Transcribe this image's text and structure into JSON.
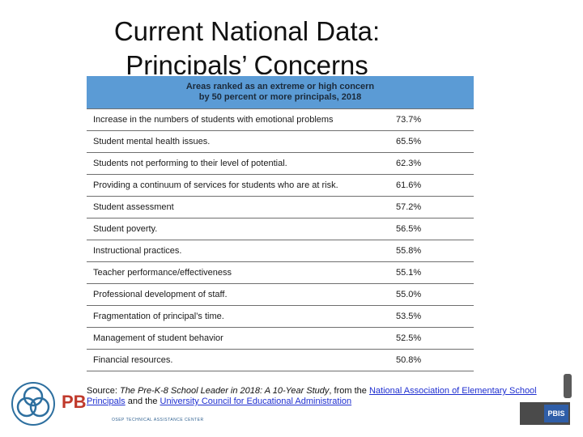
{
  "title": {
    "line1": "Current National Data:",
    "line2": "Principals’ Concerns"
  },
  "table": {
    "header_line1": "Areas ranked as an extreme or high concern",
    "header_line2": "by 50 percent or more principals, 2018",
    "rows": [
      {
        "label": "Increase in the numbers of students with emotional problems",
        "value": "73.7%"
      },
      {
        "label": "Student mental health issues.",
        "value": "65.5%"
      },
      {
        "label": "Students not performing to their level of potential.",
        "value": "62.3%"
      },
      {
        "label": "Providing a continuum of services for students who are at risk.",
        "value": "61.6%"
      },
      {
        "label": "Student assessment",
        "value": "57.2%"
      },
      {
        "label": "Student poverty.",
        "value": "56.5%"
      },
      {
        "label": "Instructional practices.",
        "value": "55.8%"
      },
      {
        "label": "Teacher performance/effectiveness",
        "value": "55.1%"
      },
      {
        "label": "Professional development of staff.",
        "value": "55.0%"
      },
      {
        "label": "Fragmentation of principal’s time.",
        "value": "53.5%"
      },
      {
        "label": "Management of student behavior",
        "value": "52.5%"
      },
      {
        "label": "Financial resources.",
        "value": "50.8%"
      }
    ]
  },
  "source": {
    "prefix": "Source: ",
    "study": "The Pre-K-8 School Leader in 2018: A 10-Year Study",
    "from": ", from the ",
    "org1": "National Association of Elementary School Principals",
    "and": " and the ",
    "org2": "University Council for Educational Administration"
  },
  "logo": {
    "letters": "PB",
    "center_text": "OSEP TECHNICAL ASSISTANCE CENTER",
    "badge_text": "PBIS"
  },
  "colors": {
    "header_bg": "#5b9bd5",
    "link": "#1f2fd0",
    "logo_letters": "#c0392b"
  }
}
